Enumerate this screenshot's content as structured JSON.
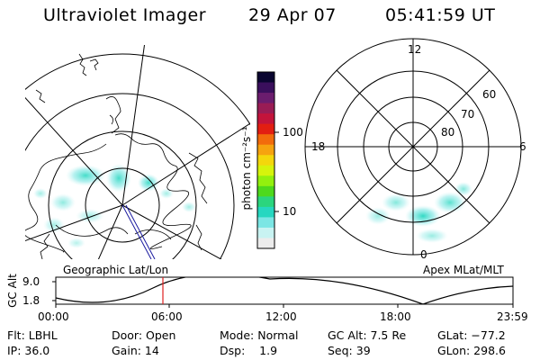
{
  "header": {
    "title": "Ultraviolet Imager",
    "date": "29 Apr 07",
    "time": "05:41:59 UT"
  },
  "colorbar": {
    "unit": "photon cm⁻²s⁻¹",
    "ticks": [
      "100",
      "10"
    ],
    "colors": [
      "#0a0530",
      "#3a0f5c",
      "#6b1d6e",
      "#991c55",
      "#c3143b",
      "#e21e12",
      "#f26b0c",
      "#f6a30f",
      "#f4d70c",
      "#d6f40c",
      "#93f00e",
      "#4ed91c",
      "#2bd57e",
      "#26d7c0",
      "#7be6e4",
      "#c8f3f2",
      "#ececec"
    ]
  },
  "left_map": {
    "label": "Geographic Lat/Lon"
  },
  "right_map": {
    "label": "Apex  MLat/MLT",
    "mlt_labels": [
      "12",
      "18",
      "6",
      "0"
    ],
    "lat_labels": [
      "60",
      "70",
      "80"
    ]
  },
  "alt_plot": {
    "ylabel": "GC Alt",
    "yticks": [
      "9.0",
      "1.8"
    ],
    "xticks": [
      "00:00",
      "06:00",
      "12:00",
      "18:00",
      "23:59"
    ],
    "marker_time": "05:41:59"
  },
  "info": {
    "row1": [
      "Flt: LBHL",
      "Door: Open",
      "Mode: Normal",
      "GC Alt: 7.5 Re",
      "GLat: −77.2"
    ],
    "row2": [
      "IP: 36.0",
      "Gain: 14",
      "Dsp:    1.9",
      "Seq: 39",
      "GLon: 298.6"
    ]
  }
}
